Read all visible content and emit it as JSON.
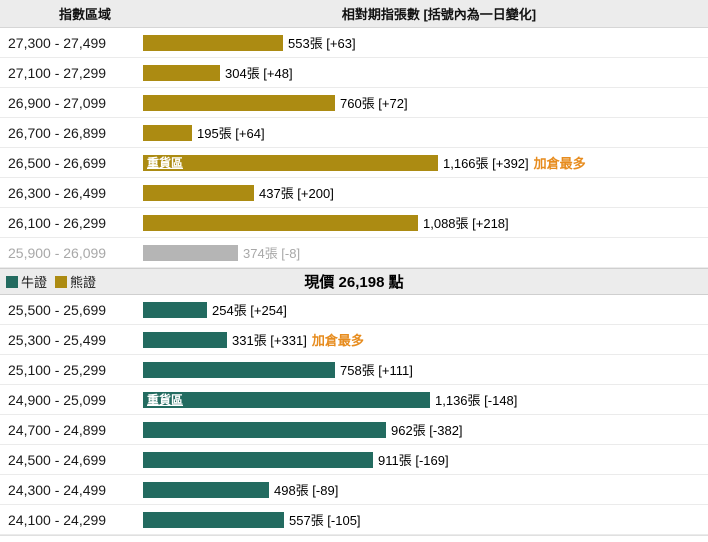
{
  "header": {
    "zone_col": "指數區域",
    "contracts_col": "相對期指張數 [括號內為一日變化]"
  },
  "legend": {
    "bull_label": "牛證",
    "bear_label": "熊證",
    "price_label": "現價 26,198 點",
    "current_price": 26198
  },
  "colors": {
    "bear": "#ac8b12",
    "bull": "#236b60",
    "gray_bar": "#b5b5b5",
    "gray_text": "#a8a8a8",
    "highlight": "#e78c1e",
    "band_bg": "#ececec"
  },
  "chart_data": {
    "type": "bar",
    "orientation": "horizontal",
    "unit": "張",
    "max_value": 1166,
    "xlim": [
      0,
      1250
    ],
    "legend_position": "middle-band-left",
    "bear_rows": [
      {
        "range": "27,300 - 27,499",
        "value": 553,
        "change": 63,
        "label": "553張 [+63]"
      },
      {
        "range": "27,100 - 27,299",
        "value": 304,
        "change": 48,
        "label": "304張 [+48]"
      },
      {
        "range": "26,900 - 27,099",
        "value": 760,
        "change": 72,
        "label": "760張 [+72]"
      },
      {
        "range": "26,700 - 26,899",
        "value": 195,
        "change": 64,
        "label": "195張 [+64]"
      },
      {
        "range": "26,500 - 26,699",
        "value": 1166,
        "change": 392,
        "label": "1,166張 [+392]",
        "tag": "加倉最多",
        "heavy": "重貨區"
      },
      {
        "range": "26,300 - 26,499",
        "value": 437,
        "change": 200,
        "label": "437張 [+200]"
      },
      {
        "range": "26,100 - 26,299",
        "value": 1088,
        "change": 218,
        "label": "1,088張 [+218]"
      },
      {
        "range": "25,900 - 26,099",
        "value": 374,
        "change": -8,
        "label": "374張 [-8]",
        "grayed": true
      }
    ],
    "bull_rows": [
      {
        "range": "25,500 - 25,699",
        "value": 254,
        "change": 254,
        "label": "254張 [+254]"
      },
      {
        "range": "25,300 - 25,499",
        "value": 331,
        "change": 331,
        "label": "331張 [+331]",
        "tag": "加倉最多"
      },
      {
        "range": "25,100 - 25,299",
        "value": 758,
        "change": 111,
        "label": "758張 [+111]"
      },
      {
        "range": "24,900 - 25,099",
        "value": 1136,
        "change": -148,
        "label": "1,136張 [-148]",
        "heavy": "重貨區"
      },
      {
        "range": "24,700 - 24,899",
        "value": 962,
        "change": -382,
        "label": "962張 [-382]"
      },
      {
        "range": "24,500 - 24,699",
        "value": 911,
        "change": -169,
        "label": "911張 [-169]"
      },
      {
        "range": "24,300 - 24,499",
        "value": 498,
        "change": -89,
        "label": "498張 [-89]"
      },
      {
        "range": "24,100 - 24,299",
        "value": 557,
        "change": -105,
        "label": "557張 [-105]"
      }
    ]
  }
}
